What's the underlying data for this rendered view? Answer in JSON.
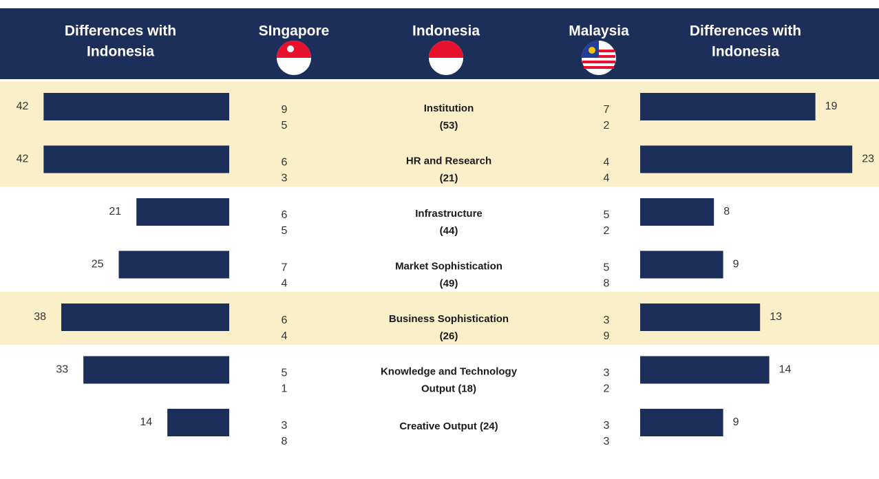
{
  "chart_data": {
    "type": "diverging-bar",
    "headers": [
      [
        "Differences with",
        "Indonesia"
      ],
      [
        "SIngapore"
      ],
      [
        "Indonesia"
      ],
      [
        "Malaysia"
      ],
      [
        "Differences with",
        "Indonesia"
      ]
    ],
    "categories": [
      [
        "Institution",
        "(53)"
      ],
      [
        "HR and Research",
        "(21)"
      ],
      [
        "Infrastructure",
        "(44)"
      ],
      [
        "Market Sophistication",
        "(49)"
      ],
      [
        "Business Sophistication",
        "(26)"
      ],
      [
        "Knowledge and Technology",
        "Output (18)"
      ],
      [
        "Creative Output (24)"
      ]
    ],
    "singapore": [
      [
        9,
        5
      ],
      [
        6,
        3
      ],
      [
        6,
        5
      ],
      [
        7,
        4
      ],
      [
        6,
        4
      ],
      [
        5,
        1
      ],
      [
        3,
        8
      ]
    ],
    "malaysia": [
      [
        7,
        2
      ],
      [
        4,
        4
      ],
      [
        5,
        2
      ],
      [
        5,
        8
      ],
      [
        3,
        9
      ],
      [
        3,
        2
      ],
      [
        3,
        3
      ]
    ],
    "highlight": [
      true,
      true,
      false,
      false,
      true,
      false,
      false
    ],
    "series": [
      {
        "name": "Singapore difference",
        "color": "#1b2f5a",
        "values": [
          42,
          42,
          21,
          25,
          38,
          33,
          14
        ],
        "xlim": [
          0,
          50
        ]
      },
      {
        "name": "Malaysia difference",
        "color": "#1b2f5a",
        "values": [
          19,
          23,
          8,
          9,
          13,
          14,
          9
        ],
        "xlim": [
          0,
          25
        ]
      }
    ]
  }
}
